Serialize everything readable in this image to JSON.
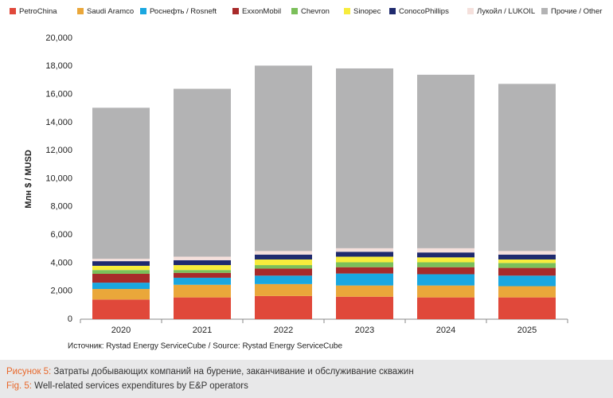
{
  "chart_data": {
    "type": "stacked-bar",
    "y_label": "Млн $ / MUSD",
    "source": "Источник: Rystad Energy ServiceCube / Source: Rystad Energy ServiceCube",
    "categories": [
      "2020",
      "2021",
      "2022",
      "2023",
      "2024",
      "2025"
    ],
    "series": [
      {
        "name": "PetroChina",
        "color": "#e0483a",
        "values": [
          1400,
          1550,
          1650,
          1600,
          1550,
          1550
        ]
      },
      {
        "name": "Saudi Aramco",
        "color": "#eaa73a",
        "values": [
          750,
          900,
          850,
          800,
          850,
          800
        ]
      },
      {
        "name": "Роснефть / Rosneft",
        "color": "#1aa7e0",
        "values": [
          450,
          500,
          600,
          850,
          800,
          750
        ]
      },
      {
        "name": "ExxonMobil",
        "color": "#a82a2a",
        "values": [
          630,
          350,
          500,
          450,
          500,
          550
        ]
      },
      {
        "name": "Chevron",
        "color": "#7bbf5a",
        "values": [
          270,
          200,
          250,
          350,
          350,
          350
        ]
      },
      {
        "name": "Sinopec",
        "color": "#f7ec3c",
        "values": [
          300,
          350,
          400,
          400,
          350,
          250
        ]
      },
      {
        "name": "ConocoPhillips",
        "color": "#1f2a6e",
        "values": [
          330,
          350,
          350,
          350,
          350,
          350
        ]
      },
      {
        "name": "Лукойл / LUKOIL",
        "color": "#f5e0dc",
        "values": [
          170,
          250,
          250,
          250,
          300,
          250
        ]
      },
      {
        "name": "Прочие / Other",
        "color": "#b3b3b4",
        "values": [
          10750,
          11950,
          13200,
          12800,
          12350,
          11900
        ]
      }
    ],
    "ylim": [
      0,
      20000
    ],
    "yticks": [
      0,
      {
        "value": 2000,
        "label": "2,000"
      },
      {
        "value": 4000,
        "label": "4,000"
      },
      {
        "value": 6000,
        "label": "6,000"
      },
      {
        "value": 8000,
        "label": "8,000"
      },
      {
        "value": 10000,
        "label": "10,000"
      },
      {
        "value": 12000,
        "label": "12,000"
      },
      {
        "value": 14000,
        "label": "14,000"
      },
      {
        "value": 16000,
        "label": "16,000"
      },
      {
        "value": 18000,
        "label": "18,000"
      },
      {
        "value": 20000,
        "label": "20,000"
      }
    ],
    "grid": false
  },
  "caption": {
    "ru_label": "Рисунок 5:",
    "ru_text": "Затраты добывающих компаний на бурение, заканчивание и обслуживание скважин",
    "en_label": "Fig. 5:",
    "en_text": "Well-related services expenditures by E&P operators"
  }
}
